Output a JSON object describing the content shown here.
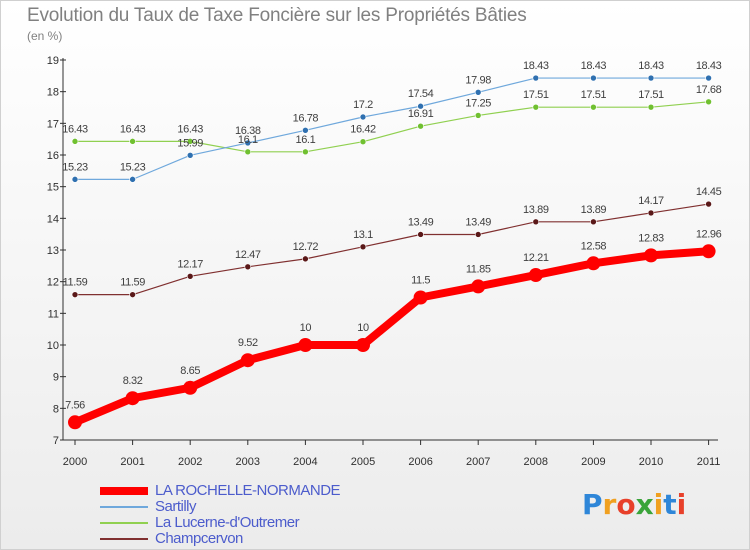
{
  "header": {
    "title": "Evolution du Taux de Taxe Foncière sur les Propriétés Bâties",
    "unit": "(en %)"
  },
  "logo": {
    "text": "Proxiti",
    "letters": [
      "P",
      "r",
      "o",
      "x",
      "i",
      "t",
      "i"
    ],
    "colors": [
      "#2e86d8",
      "#f0a020",
      "#e8402a",
      "#3aa43a",
      "#f0a020",
      "#2e86d8",
      "#e8402a"
    ]
  },
  "chart_data": {
    "type": "line",
    "title": "Evolution du Taux de Taxe Foncière sur les Propriétés Bâties",
    "ylabel": "(en %)",
    "xlabel": "",
    "x": [
      "2000",
      "2001",
      "2002",
      "2003",
      "2004",
      "2005",
      "2006",
      "2007",
      "2008",
      "2009",
      "2010",
      "2011"
    ],
    "ylim": [
      7,
      19
    ],
    "yticks": [
      7,
      8,
      9,
      10,
      11,
      12,
      13,
      14,
      15,
      16,
      17,
      18,
      19
    ],
    "grid": false,
    "legend": "bottom-left",
    "series": [
      {
        "name": "LA ROCHELLE-NORMANDE",
        "color": "#ff0000",
        "values": [
          7.56,
          8.32,
          8.65,
          9.52,
          10,
          10,
          11.5,
          11.85,
          12.21,
          12.58,
          12.83,
          12.96
        ],
        "labels": [
          "7.56",
          "8.32",
          "8.65",
          "9.52",
          "10",
          "10",
          "11.5",
          "11.85",
          "12.21",
          "12.58",
          "12.83",
          "12.96"
        ]
      },
      {
        "name": "Sartilly",
        "color": "#6fa8dc",
        "marker": "#2f70b0",
        "values": [
          15.23,
          15.23,
          15.99,
          16.38,
          16.78,
          17.2,
          17.54,
          17.98,
          18.43,
          18.43,
          18.43,
          18.43
        ],
        "labels": [
          "15.23",
          "15.23",
          "15.99",
          "16.38",
          "16.78",
          "17.2",
          "17.54",
          "17.98",
          "18.43",
          "18.43",
          "18.43",
          "18.43"
        ]
      },
      {
        "name": "La Lucerne-d'Outremer",
        "color": "#90d050",
        "marker": "#70c030",
        "values": [
          16.43,
          16.43,
          16.43,
          16.1,
          16.1,
          16.42,
          16.91,
          17.25,
          17.51,
          17.51,
          17.51,
          17.68
        ],
        "labels": [
          "16.43",
          "16.43",
          "16.43",
          "16.1",
          "16.1",
          "16.42",
          "16.91",
          "17.25",
          "17.51",
          "17.51",
          "17.51",
          "17.68"
        ]
      },
      {
        "name": "Champcervon",
        "color": "#803030",
        "marker": "#5a1818",
        "values": [
          11.59,
          11.59,
          12.17,
          12.47,
          12.72,
          13.1,
          13.49,
          13.49,
          13.89,
          13.89,
          14.17,
          14.45
        ],
        "labels": [
          "11.59",
          "11.59",
          "12.17",
          "12.47",
          "12.72",
          "13.1",
          "13.49",
          "13.49",
          "13.89",
          "13.89",
          "14.17",
          "14.45"
        ]
      }
    ]
  }
}
